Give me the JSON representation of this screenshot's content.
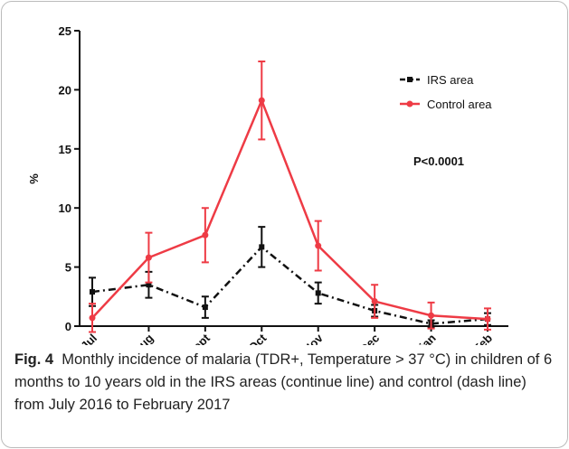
{
  "chart_data": {
    "type": "line",
    "ylabel": "%",
    "categories": [
      "Jul",
      "Aug",
      "Sept",
      "Oct",
      "Nov",
      "Dec",
      "jan",
      "Feb"
    ],
    "ylim": [
      0,
      25
    ],
    "yticks": [
      0,
      5,
      10,
      15,
      20,
      25
    ],
    "series": [
      {
        "name": "IRS area",
        "color": "#111111",
        "dash": "8,4,2,4",
        "values": [
          2.9,
          3.5,
          1.6,
          6.7,
          2.8,
          1.3,
          0.2,
          0.6
        ],
        "errors": [
          1.2,
          1.1,
          0.9,
          1.7,
          0.9,
          0.5,
          0.3,
          0.5
        ]
      },
      {
        "name": "Control area",
        "color": "#ee3b45",
        "dash": "",
        "values": [
          0.7,
          5.8,
          7.7,
          19.1,
          6.8,
          2.1,
          0.9,
          0.6
        ],
        "errors": [
          1.2,
          2.1,
          2.3,
          3.3,
          2.1,
          1.4,
          1.1,
          0.9
        ]
      }
    ],
    "annotation": "P<0.0001",
    "caption": {
      "label": "Fig. 4",
      "text": "Monthly incidence of malaria (TDR+, Temperature > 37 °C) in children of 6 months to 10 years old in the IRS areas (continue line) and control (dash line) from July 2016 to February 2017"
    }
  }
}
